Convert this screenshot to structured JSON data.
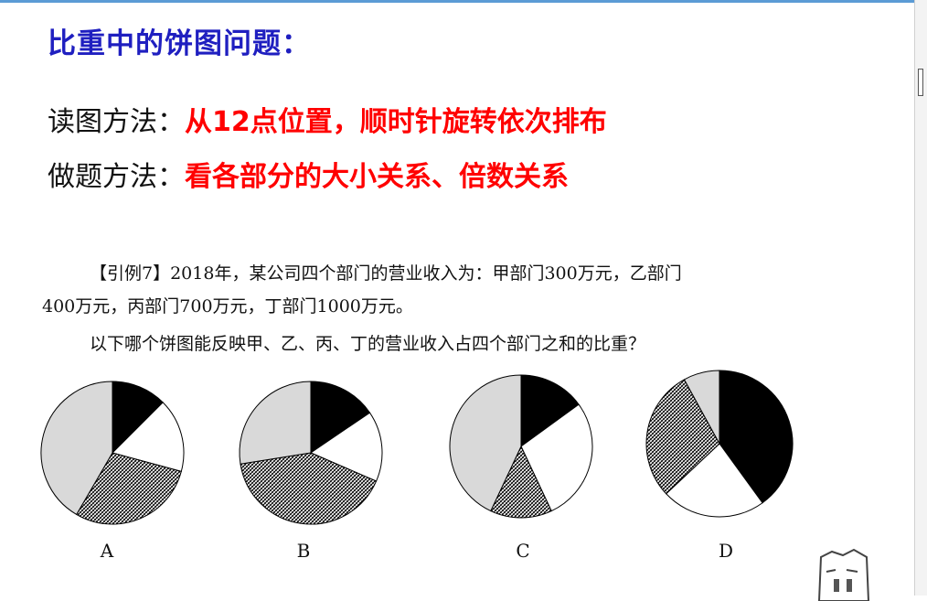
{
  "slide": {
    "title": "比重中的饼图问题：",
    "reading_method": {
      "label": "读图方法：",
      "text": "从12点位置，顺时针旋转依次排布"
    },
    "solving_method": {
      "label": "做题方法：",
      "text": "看各部分的大小关系、倍数关系"
    }
  },
  "question": {
    "line1": "【引例7】2018年，某公司四个部门的营业收入为：甲部门300万元，乙部门",
    "line2": "400万元，丙部门700万元，丁部门1000万元。",
    "line3": "以下哪个饼图能反映甲、乙、丙、丁的营业收入占四个部门之和的比重？"
  },
  "colors": {
    "title": "#1f1fc0",
    "highlight": "#ff0000",
    "black_slice": "#000000",
    "white_slice": "#ffffff",
    "grey_slice": "#d9d9d9"
  },
  "chart_data": [
    {
      "type": "pie",
      "label": "A",
      "fills": [
        "black",
        "white",
        "hatch",
        "grey"
      ],
      "values": [
        12.5,
        16.7,
        29.2,
        41.6
      ]
    },
    {
      "type": "pie",
      "label": "B",
      "fills": [
        "black",
        "white",
        "hatch",
        "grey"
      ],
      "values": [
        15.5,
        16,
        41,
        27.5
      ]
    },
    {
      "type": "pie",
      "label": "C",
      "fills": [
        "black",
        "white",
        "hatch",
        "grey"
      ],
      "values": [
        15,
        28,
        14,
        43
      ]
    },
    {
      "type": "pie",
      "label": "D",
      "fills": [
        "black",
        "white",
        "hatch",
        "grey"
      ],
      "values": [
        40,
        23,
        29,
        8
      ]
    }
  ]
}
